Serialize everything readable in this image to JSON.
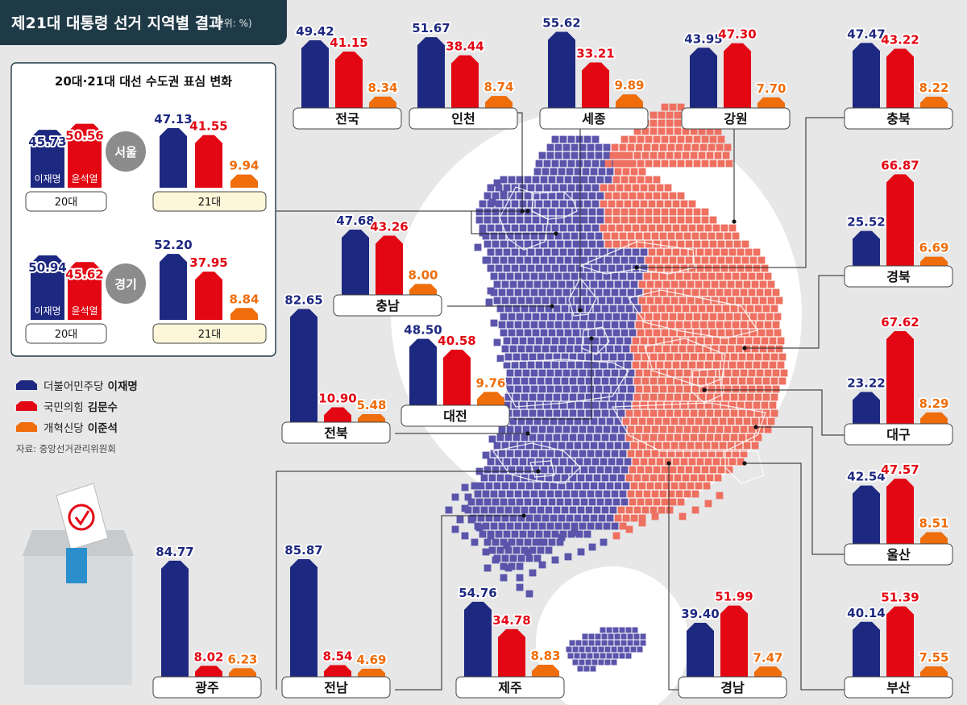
{
  "header": {
    "title": "제21대 대통령 선거 지역별 결과",
    "unit": "(단위: %)"
  },
  "colors": {
    "blue": "#1d2880",
    "red": "#e30613",
    "orange": "#ef6d0a",
    "blue_region": "#5a55ab",
    "red_region": "#ee7060",
    "header": "#1f3a47"
  },
  "legend": [
    {
      "party": "더불어민주당",
      "name": "이재명",
      "color": "#1d2880"
    },
    {
      "party": "국민의힘",
      "name": "김문수",
      "color": "#e30613"
    },
    {
      "party": "개혁신당",
      "name": "이준석",
      "color": "#ef6d0a"
    }
  ],
  "source": "자료: 중앙선거관리위원회",
  "chart_data": [
    {
      "type": "bar",
      "region": "전국",
      "values": [
        49.42,
        41.15,
        8.34
      ]
    },
    {
      "type": "bar",
      "region": "인천",
      "values": [
        51.67,
        38.44,
        8.74
      ]
    },
    {
      "type": "bar",
      "region": "세종",
      "values": [
        55.62,
        33.21,
        9.89
      ]
    },
    {
      "type": "bar",
      "region": "강원",
      "values": [
        43.95,
        47.3,
        7.7
      ]
    },
    {
      "type": "bar",
      "region": "충북",
      "values": [
        47.47,
        43.22,
        8.22
      ]
    },
    {
      "type": "bar",
      "region": "경북",
      "values": [
        25.52,
        66.87,
        6.69
      ]
    },
    {
      "type": "bar",
      "region": "충남",
      "values": [
        47.68,
        43.26,
        8.0
      ]
    },
    {
      "type": "bar",
      "region": "대전",
      "values": [
        48.5,
        40.58,
        9.76
      ]
    },
    {
      "type": "bar",
      "region": "전북",
      "values": [
        82.65,
        10.9,
        5.48
      ]
    },
    {
      "type": "bar",
      "region": "대구",
      "values": [
        23.22,
        67.62,
        8.29
      ]
    },
    {
      "type": "bar",
      "region": "울산",
      "values": [
        42.54,
        47.57,
        8.51
      ]
    },
    {
      "type": "bar",
      "region": "광주",
      "values": [
        84.77,
        8.02,
        6.23
      ]
    },
    {
      "type": "bar",
      "region": "전남",
      "values": [
        85.87,
        8.54,
        4.69
      ]
    },
    {
      "type": "bar",
      "region": "제주",
      "values": [
        54.76,
        34.78,
        8.83
      ]
    },
    {
      "type": "bar",
      "region": "경남",
      "values": [
        39.4,
        51.99,
        7.47
      ]
    },
    {
      "type": "bar",
      "region": "부산",
      "values": [
        40.14,
        51.39,
        7.55
      ]
    }
  ],
  "capital_inset": {
    "title": "20대·21대 대선 수도권 표심 변화",
    "regions": [
      {
        "name": "서울",
        "d20": {
          "label": "20대",
          "values": [
            45.73,
            50.56
          ],
          "names": [
            "이재명",
            "윤석열"
          ]
        },
        "d21": {
          "label": "21대",
          "values": [
            47.13,
            41.55,
            9.94
          ]
        }
      },
      {
        "name": "경기",
        "d20": {
          "label": "20대",
          "values": [
            50.94,
            45.62
          ],
          "names": [
            "이재명",
            "윤석열"
          ]
        },
        "d21": {
          "label": "21대",
          "values": [
            52.2,
            37.95,
            8.84
          ]
        }
      }
    ]
  }
}
